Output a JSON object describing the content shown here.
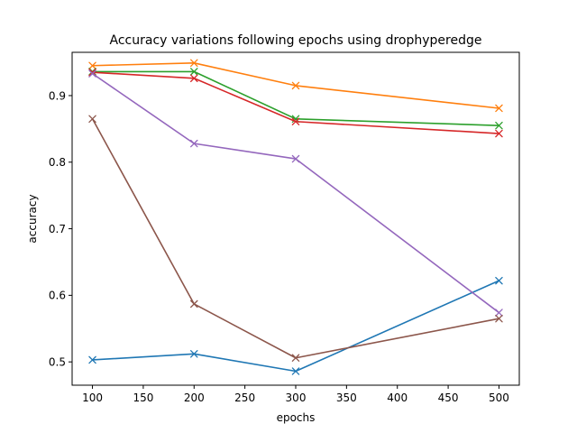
{
  "chart_data": {
    "type": "line",
    "title": "Accuracy variations following epochs using drophyperedge",
    "xlabel": "epochs",
    "ylabel": "accuracy",
    "x": [
      100,
      200,
      300,
      500
    ],
    "xlim": [
      80,
      520
    ],
    "ylim": [
      0.465,
      0.965
    ],
    "xticks": [
      100,
      150,
      200,
      250,
      300,
      350,
      400,
      450,
      500
    ],
    "yticks": [
      0.5,
      0.6,
      0.7,
      0.8,
      0.9
    ],
    "grid": false,
    "marker": "x",
    "series": [
      {
        "color": "#1f77b4",
        "values": [
          0.503,
          0.512,
          0.486,
          0.622
        ]
      },
      {
        "color": "#ff7f0e",
        "values": [
          0.945,
          0.949,
          0.915,
          0.881
        ]
      },
      {
        "color": "#2ca02c",
        "values": [
          0.936,
          0.936,
          0.865,
          0.855
        ]
      },
      {
        "color": "#d62728",
        "values": [
          0.935,
          0.926,
          0.861,
          0.843
        ]
      },
      {
        "color": "#9467bd",
        "values": [
          0.933,
          0.828,
          0.805,
          0.574
        ]
      },
      {
        "color": "#8c564b",
        "values": [
          0.865,
          0.587,
          0.506,
          0.565
        ]
      }
    ]
  }
}
